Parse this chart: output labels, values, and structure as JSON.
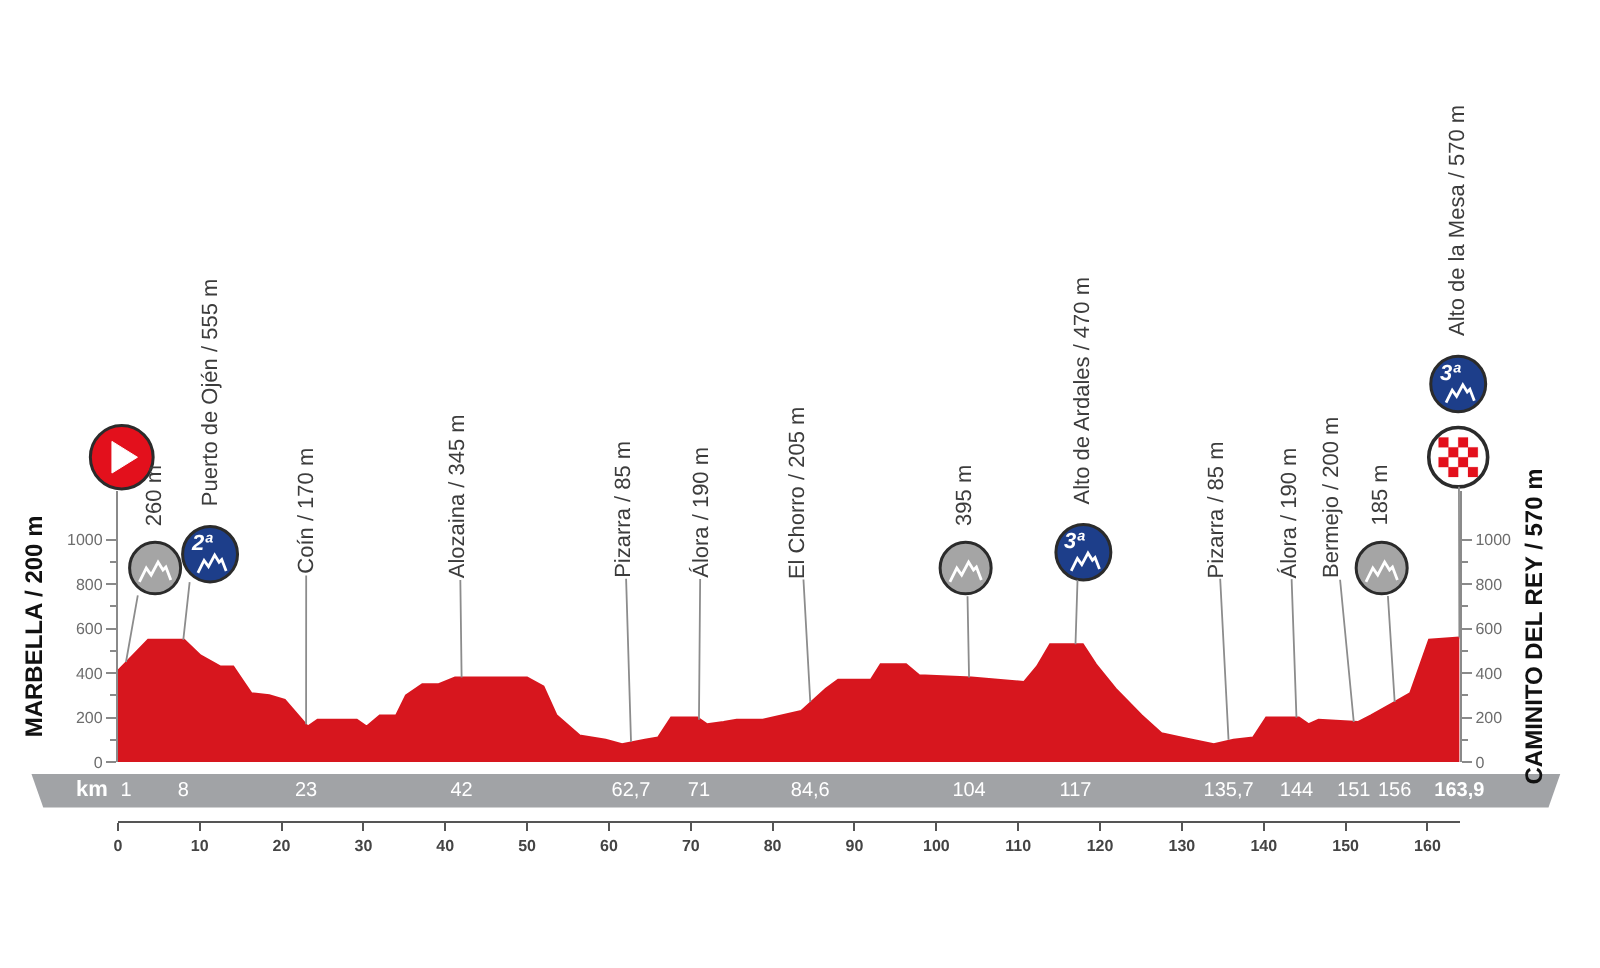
{
  "chart_data": {
    "type": "area",
    "color": "#d7161e",
    "x": [
      0,
      3.7,
      8.1,
      10.1,
      12.5,
      14.1,
      16.3,
      18.5,
      20.4,
      23.2,
      24.4,
      29.2,
      30.4,
      32,
      34,
      35.2,
      37.2,
      39.2,
      41.2,
      47.6,
      50,
      52,
      53.6,
      56.4,
      59.6,
      61.6,
      64.4,
      66,
      67.6,
      70.8,
      72,
      74,
      75.6,
      78.8,
      83.5,
      86.5,
      88,
      92,
      93.2,
      96.3,
      97.9,
      104.3,
      110.7,
      112.3,
      113.9,
      117.9,
      119.5,
      121.9,
      125.1,
      127.5,
      129.9,
      133.9,
      136.3,
      138.7,
      140.3,
      144.3,
      145.5,
      146.7,
      151.5,
      153.1,
      155.5,
      157.9,
      160.2,
      163.9
    ],
    "values": [
      410,
      550,
      550,
      480,
      430,
      430,
      310,
      300,
      280,
      160,
      190,
      190,
      160,
      210,
      210,
      300,
      350,
      350,
      380,
      380,
      380,
      340,
      210,
      120,
      100,
      80,
      100,
      110,
      200,
      200,
      170,
      180,
      190,
      190,
      230,
      330,
      370,
      370,
      440,
      440,
      390,
      380,
      360,
      430,
      530,
      530,
      440,
      330,
      210,
      130,
      110,
      80,
      100,
      110,
      200,
      200,
      170,
      190,
      180,
      210,
      260,
      310,
      550,
      560
    ],
    "xlim": [
      0,
      164
    ],
    "xticks": [
      0,
      10,
      20,
      30,
      40,
      50,
      60,
      70,
      80,
      90,
      100,
      110,
      120,
      130,
      140,
      150,
      160
    ],
    "x2lim": [
      0,
      164
    ],
    "x2ticks": [
      1,
      8,
      23,
      42,
      {
        "value": 62.7,
        "label": "62,7"
      },
      71,
      {
        "value": 84.6,
        "label": "84,6"
      },
      104,
      117,
      {
        "value": 135.7,
        "label": "135,7"
      },
      144,
      151,
      156,
      {
        "value": 163.9,
        "label": "163,9"
      }
    ],
    "x2label": "km",
    "ylim": [
      0,
      1220
    ],
    "yticks": [
      0,
      {
        "value": 100,
        "label": null
      },
      200,
      {
        "value": 300,
        "label": null
      },
      400,
      {
        "value": 500,
        "label": null
      },
      600,
      {
        "value": 700,
        "label": null
      },
      800,
      {
        "value": 900,
        "label": null
      },
      1000
    ],
    "y2lim": [
      0,
      1220
    ],
    "y2ticks": [
      0,
      {
        "value": 100,
        "label": null
      },
      200,
      {
        "value": 300,
        "label": null
      },
      400,
      {
        "value": 500,
        "label": null
      },
      600,
      {
        "value": 700,
        "label": null
      },
      800,
      {
        "value": 900,
        "label": null
      },
      1000
    ],
    "ylabel": "MARBELLA / 200 m",
    "y2label": "CAMINITO DEL REY / 570 m",
    "annotations": [
      {
        "text": "260 m",
        "x": 1,
        "y": 450
      },
      {
        "text": "Puerto de Ojén / 555 m",
        "x": 8,
        "y": 550
      },
      {
        "text": "Coín / 170 m",
        "x": 23,
        "y": 170
      },
      {
        "text": "Alozaina / 345 m",
        "x": 42,
        "y": 380
      },
      {
        "text": "Pizarra / 85 m",
        "x": 62.7,
        "y": 90
      },
      {
        "text": "Álora / 190 m",
        "x": 71,
        "y": 190
      },
      {
        "text": "El Chorro / 205 m",
        "x": 84.6,
        "y": 270
      },
      {
        "text": "395 m",
        "x": 104,
        "y": 380
      },
      {
        "text": "Alto de Ardales / 470 m",
        "x": 117,
        "y": 530
      },
      {
        "text": "Pizarra / 85 m",
        "x": 135.7,
        "y": 100
      },
      {
        "text": "Álora / 190 m",
        "x": 144,
        "y": 200
      },
      {
        "text": "Bermejo / 200 m",
        "x": 151,
        "y": 180
      },
      {
        "text": "185 m",
        "x": 156,
        "y": 270
      },
      {
        "text": "Alto de la Mesa / 570 m",
        "x": 163.9,
        "y": 560
      },
      "2ª",
      "3ª",
      "3ª"
    ]
  }
}
